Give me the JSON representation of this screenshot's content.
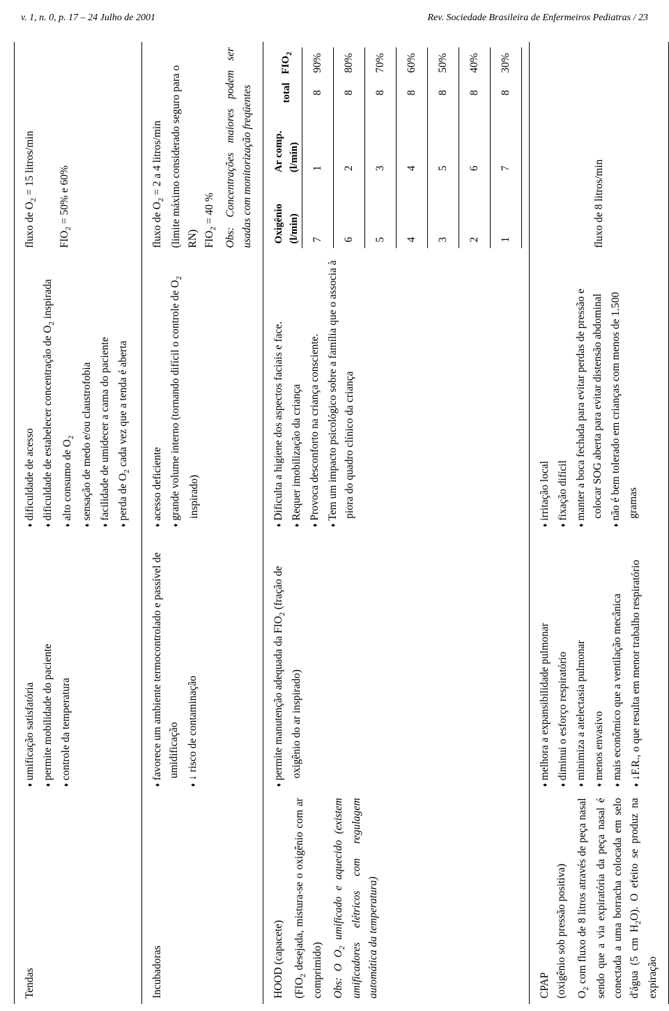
{
  "header": {
    "left": "v. 1, n. 0, p. 17 – 24    Julho de 2001",
    "right": "Rev. Sociedade Brasileira de Enfermeiros Pediatras / 23"
  },
  "rows": [
    {
      "col1_title": "Tendas",
      "col2": [
        "umificação satisfatória",
        "permite mobilidade do paciente",
        "controle da temperatura"
      ],
      "col3": [
        "dificuldade de acesso",
        "dificuldade de estabelecer concentração de O₂ inspirada",
        "alto consumo de O₂",
        "sensação de medo e/ou claustrofobia",
        "facilidade de umidecer a cama do paciente",
        "perda de O₂ cada vez que a tenda é aberta"
      ],
      "col4": {
        "lines": [
          "fluxo de O₂ = 15  litros/min",
          "",
          "FIO₂ = 50% e 60%"
        ]
      }
    },
    {
      "col1_title": "Incubadoras",
      "col2": [
        "favorece um ambiente termocontrolado e passível de umidificação",
        "↓ risco de contaminação"
      ],
      "col3": [
        "acesso deficiente",
        "grande volume interno (tornando difícil o controle de O₂ inspirado)"
      ],
      "col4": {
        "lines": [
          "fluxo de O₂ = 2 a 4 litros/min",
          "(limite máximo considerado seguro para o RN)",
          "FIO₂ =  40 %"
        ],
        "obs": "Obs: Concentrações maiores podem ser usadas com monitorização freqüentes"
      }
    },
    {
      "col1_title": "HOOD (capacete)",
      "col1_extra": [
        "(FIO₂ desejada, mistura-se o oxigênio com ar comprimido)",
        "Obs: O O₂ umificado e aquecido (existem umificadores elétricos com regulagem automática da temperatura)"
      ],
      "col2": [
        "permite manutenção adequada da FIO₂ (fração de oxigênio do ar inspirado)"
      ],
      "col3": [
        "Dificulta a higiene dos aspectos faciais e face.",
        "Requer imobilização da criança",
        "Provoca desconforto na criança consciente.",
        "Tem um impacto psicológico sobre a família que o associa à piora do quadro clínico da criança"
      ],
      "flow_table": {
        "headers": [
          "Oxigênio (l/min)",
          "Ar comp. (l/min)",
          "total",
          "FIO₂"
        ],
        "rows": [
          [
            "7",
            "1",
            "8",
            "90%"
          ],
          [
            "6",
            "2",
            "8",
            "80%"
          ],
          [
            "5",
            "3",
            "8",
            "70%"
          ],
          [
            "4",
            "4",
            "8",
            "60%"
          ],
          [
            "3",
            "5",
            "8",
            "50%"
          ],
          [
            "2",
            "6",
            "8",
            "40%"
          ],
          [
            "1",
            "7",
            "8",
            "30%"
          ]
        ]
      }
    },
    {
      "col1_title": "CPAP",
      "col1_sub": "(oxigênio sob pressão positiva)",
      "col1_extra": [
        "O₂ com fluxo de 8 litros através de peça nasal sendo que a via expiratória da peça nasal é conectada a uma borracha colocada em selo d'água (5 cm H₂O). O efeito se produz na expiração"
      ],
      "col2": [
        "melhora a expansibilidade pulmonar",
        "diminui o esforço respiratório",
        "minimiza a atelectasia pulmonar",
        "menos envasivo",
        "mais econômico que a ventilação mecânica",
        "↓F.R., o que resulta em menor trabalho respiratório"
      ],
      "col3": [
        "irritação local",
        "fixação difícil",
        "manter a boca fechada para evitar perdas de pressão e colocar SOG aberta para evitar distensão abdominal",
        "não é bem tolerado em crianças com menos de 1.500 gramas"
      ],
      "col4": {
        "lines": [
          "fluxo de 8 litros/min"
        ]
      },
      "col4_middle": true
    }
  ]
}
